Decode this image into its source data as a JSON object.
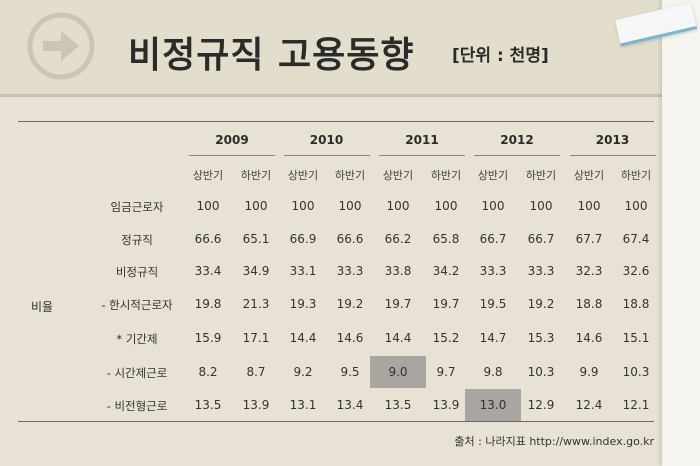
{
  "title": "비정규직 고용동향",
  "unit": "[단위 : 천명]",
  "icon": "arrow-right-icon",
  "side_label": "비율",
  "years": [
    "2009",
    "2010",
    "2011",
    "2012",
    "2013"
  ],
  "halves": [
    "상반기",
    "하반기",
    "상반기",
    "하반기",
    "상반기",
    "하반기",
    "상반기",
    "하반기",
    "상반기",
    "하반기"
  ],
  "rows": [
    {
      "label": "임금근로자",
      "values": [
        "100",
        "100",
        "100",
        "100",
        "100",
        "100",
        "100",
        "100",
        "100",
        "100"
      ]
    },
    {
      "label": "정규직",
      "values": [
        "66.6",
        "65.1",
        "66.9",
        "66.6",
        "66.2",
        "65.8",
        "66.7",
        "66.7",
        "67.7",
        "67.4"
      ]
    },
    {
      "label": "비정규직",
      "values": [
        "33.4",
        "34.9",
        "33.1",
        "33.3",
        "33.8",
        "34.2",
        "33.3",
        "33.3",
        "32.3",
        "32.6"
      ]
    },
    {
      "label": "- 한시적근로자",
      "values": [
        "19.8",
        "21.3",
        "19.3",
        "19.2",
        "19.7",
        "19.7",
        "19.5",
        "19.2",
        "18.8",
        "18.8"
      ]
    },
    {
      "label": "* 기간제",
      "values": [
        "15.9",
        "17.1",
        "14.4",
        "14.6",
        "14.4",
        "15.2",
        "14.7",
        "15.3",
        "14.6",
        "15.1"
      ]
    },
    {
      "label": "- 시간제근로",
      "values": [
        "8.2",
        "8.7",
        "9.2",
        "9.5",
        "9.0",
        "9.7",
        "9.8",
        "10.3",
        "9.9",
        "10.3"
      ]
    },
    {
      "label": "- 비전형근로",
      "values": [
        "13.5",
        "13.9",
        "13.1",
        "13.4",
        "13.5",
        "13.9",
        "13.0",
        "12.9",
        "12.4",
        "12.1"
      ]
    }
  ],
  "highlights": [
    {
      "row": 5,
      "col": 4
    },
    {
      "row": 6,
      "col": 6
    }
  ],
  "colors": {
    "background": "#e7e2d4",
    "highlight": "#a9a6a2",
    "tape_stripe": "#7cb3cf"
  },
  "source": "출처 : 나라지표 http://www.index.go.kr"
}
